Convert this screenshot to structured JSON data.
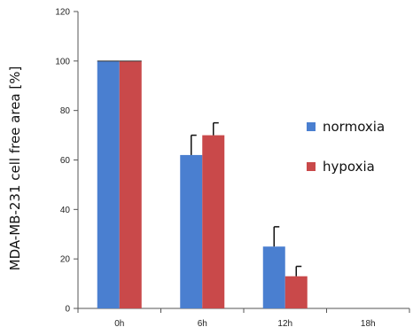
{
  "chart_data": {
    "type": "bar",
    "categories": [
      "0h",
      "6h",
      "12h",
      "18h"
    ],
    "series": [
      {
        "name": "normoxia",
        "color": "#4a7fd0",
        "values": [
          100,
          62,
          25,
          null
        ],
        "errors": [
          0,
          8,
          8,
          null
        ]
      },
      {
        "name": "hypoxia",
        "color": "#c9494a",
        "values": [
          100,
          70,
          13,
          null
        ],
        "errors": [
          0,
          5,
          4,
          null
        ]
      }
    ],
    "ylabel": "MDA-MB-231 cell free area [%]",
    "xlabel": "",
    "ylim": [
      0,
      120
    ],
    "yticks": [
      0,
      20,
      40,
      60,
      80,
      100,
      120
    ],
    "grid": false,
    "legend_position": "right"
  }
}
